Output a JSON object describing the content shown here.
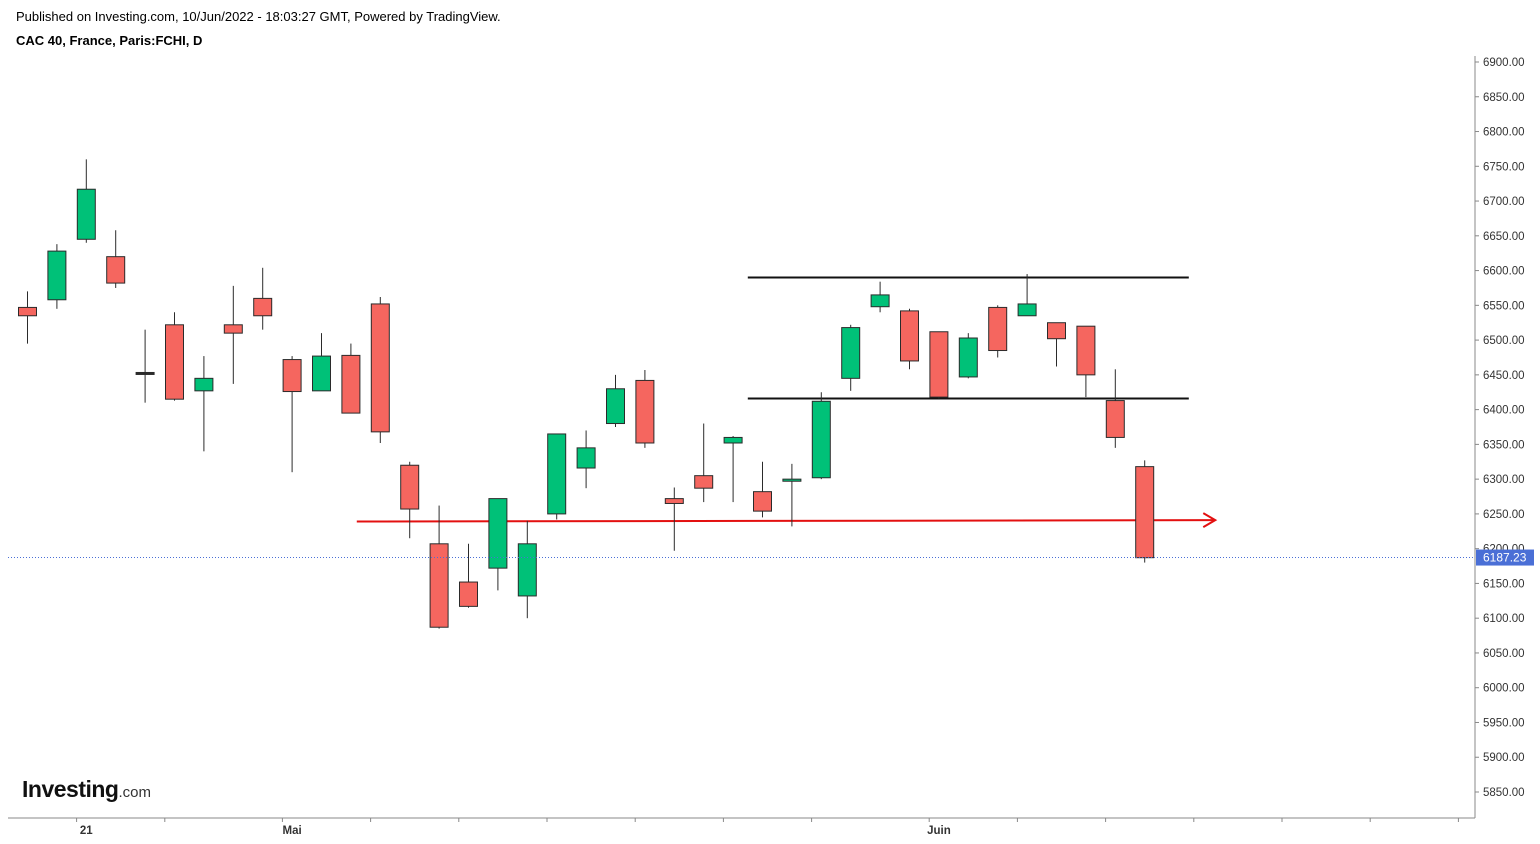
{
  "header": {
    "published": "Published on Investing.com, 10/Jun/2022 - 18:03:27 GMT, Powered by TradingView.",
    "symbol": "CAC 40, France, Paris:FCHI, D"
  },
  "logo": {
    "main": "Investing",
    "suffix": ".com"
  },
  "colors": {
    "up": "#00c178",
    "down": "#f5665f",
    "wick": "#2b2b2b",
    "support": "#e31010",
    "resistance": "#111111",
    "last_price": "#4a6fd6",
    "axis": "#888888"
  },
  "chart_data": {
    "type": "candlestick",
    "title": "CAC 40, France, Paris:FCHI, D",
    "y_axis": {
      "position": "right",
      "ylim": [
        5812,
        6905
      ],
      "ticks": [
        6900,
        6850,
        6800,
        6750,
        6700,
        6650,
        6600,
        6550,
        6500,
        6450,
        6400,
        6350,
        6300,
        6250,
        6200,
        6150,
        6100,
        6050,
        6000,
        5950,
        5900,
        5850
      ],
      "tick_labels": [
        "6900.00",
        "6850.00",
        "6800.00",
        "6750.00",
        "6700.00",
        "6650.00",
        "6600.00",
        "6550.00",
        "6500.00",
        "6450.00",
        "6400.00",
        "6350.00",
        "6300.00",
        "6250.00",
        "6200.00",
        "6150.00",
        "6100.00",
        "6050.00",
        "6000.00",
        "5950.00",
        "5900.00",
        "5850.00"
      ]
    },
    "x_axis": {
      "labels": [
        {
          "text": "21",
          "index": 2
        },
        {
          "text": "Mai",
          "index": 9
        },
        {
          "text": "Juin",
          "index": 31
        }
      ],
      "tick_indices": [
        2,
        5,
        9,
        12,
        15,
        18,
        21,
        24,
        27,
        31,
        34,
        37,
        40,
        43,
        46,
        49
      ]
    },
    "last_price": {
      "value": 6187.23,
      "label": "6187.23"
    },
    "candles": [
      {
        "o": 6547,
        "h": 6570,
        "l": 6495,
        "c": 6535
      },
      {
        "o": 6558,
        "h": 6638,
        "l": 6545,
        "c": 6628
      },
      {
        "o": 6645,
        "h": 6760,
        "l": 6640,
        "c": 6717
      },
      {
        "o": 6620,
        "h": 6658,
        "l": 6575,
        "c": 6582
      },
      {
        "o": 6452,
        "h": 6515,
        "l": 6410,
        "c": 6450
      },
      {
        "o": 6522,
        "h": 6540,
        "l": 6413,
        "c": 6415
      },
      {
        "o": 6427,
        "h": 6477,
        "l": 6340,
        "c": 6445
      },
      {
        "o": 6522,
        "h": 6578,
        "l": 6437,
        "c": 6510
      },
      {
        "o": 6560,
        "h": 6604,
        "l": 6515,
        "c": 6535
      },
      {
        "o": 6472,
        "h": 6477,
        "l": 6310,
        "c": 6426
      },
      {
        "o": 6427,
        "h": 6510,
        "l": 6427,
        "c": 6477
      },
      {
        "o": 6478,
        "h": 6495,
        "l": 6395,
        "c": 6395
      },
      {
        "o": 6552,
        "h": 6562,
        "l": 6352,
        "c": 6368
      },
      {
        "o": 6320,
        "h": 6325,
        "l": 6215,
        "c": 6257
      },
      {
        "o": 6207,
        "h": 6262,
        "l": 6085,
        "c": 6087
      },
      {
        "o": 6152,
        "h": 6207,
        "l": 6115,
        "c": 6117
      },
      {
        "o": 6172,
        "h": 6272,
        "l": 6140,
        "c": 6272
      },
      {
        "o": 6132,
        "h": 6240,
        "l": 6100,
        "c": 6207
      },
      {
        "o": 6250,
        "h": 6365,
        "l": 6242,
        "c": 6365
      },
      {
        "o": 6316,
        "h": 6370,
        "l": 6287,
        "c": 6345
      },
      {
        "o": 6380,
        "h": 6450,
        "l": 6375,
        "c": 6430
      },
      {
        "o": 6442,
        "h": 6457,
        "l": 6345,
        "c": 6352
      },
      {
        "o": 6272,
        "h": 6288,
        "l": 6197,
        "c": 6265
      },
      {
        "o": 6305,
        "h": 6380,
        "l": 6267,
        "c": 6287
      },
      {
        "o": 6352,
        "h": 6362,
        "l": 6267,
        "c": 6360
      },
      {
        "o": 6282,
        "h": 6325,
        "l": 6245,
        "c": 6254
      },
      {
        "o": 6297,
        "h": 6322,
        "l": 6232,
        "c": 6300
      },
      {
        "o": 6302,
        "h": 6425,
        "l": 6300,
        "c": 6412
      },
      {
        "o": 6445,
        "h": 6522,
        "l": 6427,
        "c": 6518
      },
      {
        "o": 6548,
        "h": 6584,
        "l": 6540,
        "c": 6565
      },
      {
        "o": 6542,
        "h": 6545,
        "l": 6458,
        "c": 6470
      },
      {
        "o": 6512,
        "h": 6512,
        "l": 6416,
        "c": 6418
      },
      {
        "o": 6447,
        "h": 6510,
        "l": 6445,
        "c": 6503
      },
      {
        "o": 6547,
        "h": 6550,
        "l": 6475,
        "c": 6485
      },
      {
        "o": 6535,
        "h": 6595,
        "l": 6535,
        "c": 6552
      },
      {
        "o": 6525,
        "h": 6525,
        "l": 6462,
        "c": 6502
      },
      {
        "o": 6520,
        "h": 6520,
        "l": 6418,
        "c": 6450
      },
      {
        "o": 6413,
        "h": 6458,
        "l": 6345,
        "c": 6360
      },
      {
        "o": 6318,
        "h": 6327,
        "l": 6180,
        "c": 6187
      }
    ],
    "lines": [
      {
        "name": "resistance",
        "type": "horizontal",
        "y": 6590,
        "from_index": 24.5,
        "to_index": 39.5
      },
      {
        "name": "support",
        "type": "horizontal",
        "y": 6416,
        "from_index": 24.5,
        "to_index": 39.5
      },
      {
        "name": "neckline",
        "type": "arrow",
        "y1": 6239,
        "y2": 6241,
        "from_index": 11.2,
        "to_index": 40.4
      }
    ]
  }
}
